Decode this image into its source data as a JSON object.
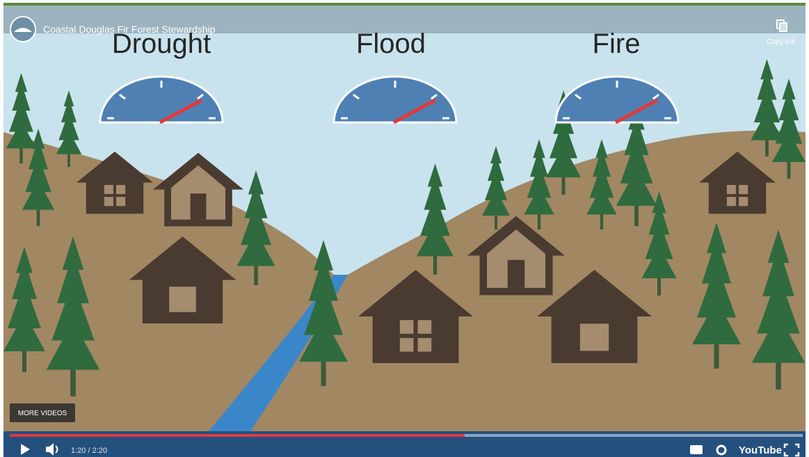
{
  "video": {
    "title": "Coastal Douglas Fir Forest Stewardship",
    "copy_link": "Copy link",
    "more_videos": "MORE VIDEOS"
  },
  "scene": {
    "labels": [
      "Drought",
      "Flood",
      "Fire"
    ]
  },
  "controls": {
    "time": "1:20 / 2:20",
    "brand": "YouTube"
  }
}
